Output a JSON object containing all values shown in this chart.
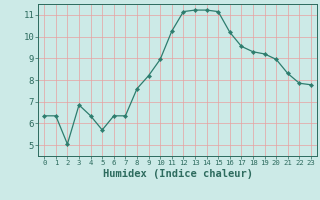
{
  "x": [
    0,
    1,
    2,
    3,
    4,
    5,
    6,
    7,
    8,
    9,
    10,
    11,
    12,
    13,
    14,
    15,
    16,
    17,
    18,
    19,
    20,
    21,
    22,
    23
  ],
  "y": [
    6.35,
    6.35,
    5.05,
    6.85,
    6.35,
    5.7,
    6.35,
    6.35,
    7.6,
    8.2,
    8.95,
    10.25,
    11.15,
    11.22,
    11.22,
    11.15,
    10.2,
    9.55,
    9.3,
    9.2,
    8.95,
    8.3,
    7.85,
    7.78
  ],
  "line_color": "#2d7d6e",
  "marker": "D",
  "marker_size": 2.2,
  "bg_color": "#cceae7",
  "grid_color": "#e8a0a0",
  "axis_color": "#2d6b5e",
  "xlabel": "Humidex (Indice chaleur)",
  "xlim": [
    -0.5,
    23.5
  ],
  "ylim": [
    4.5,
    11.5
  ],
  "yticks": [
    5,
    6,
    7,
    8,
    9,
    10,
    11
  ],
  "xticks": [
    0,
    1,
    2,
    3,
    4,
    5,
    6,
    7,
    8,
    9,
    10,
    11,
    12,
    13,
    14,
    15,
    16,
    17,
    18,
    19,
    20,
    21,
    22,
    23
  ],
  "xlabel_fontsize": 7.5,
  "tick_fontsize": 6.5
}
